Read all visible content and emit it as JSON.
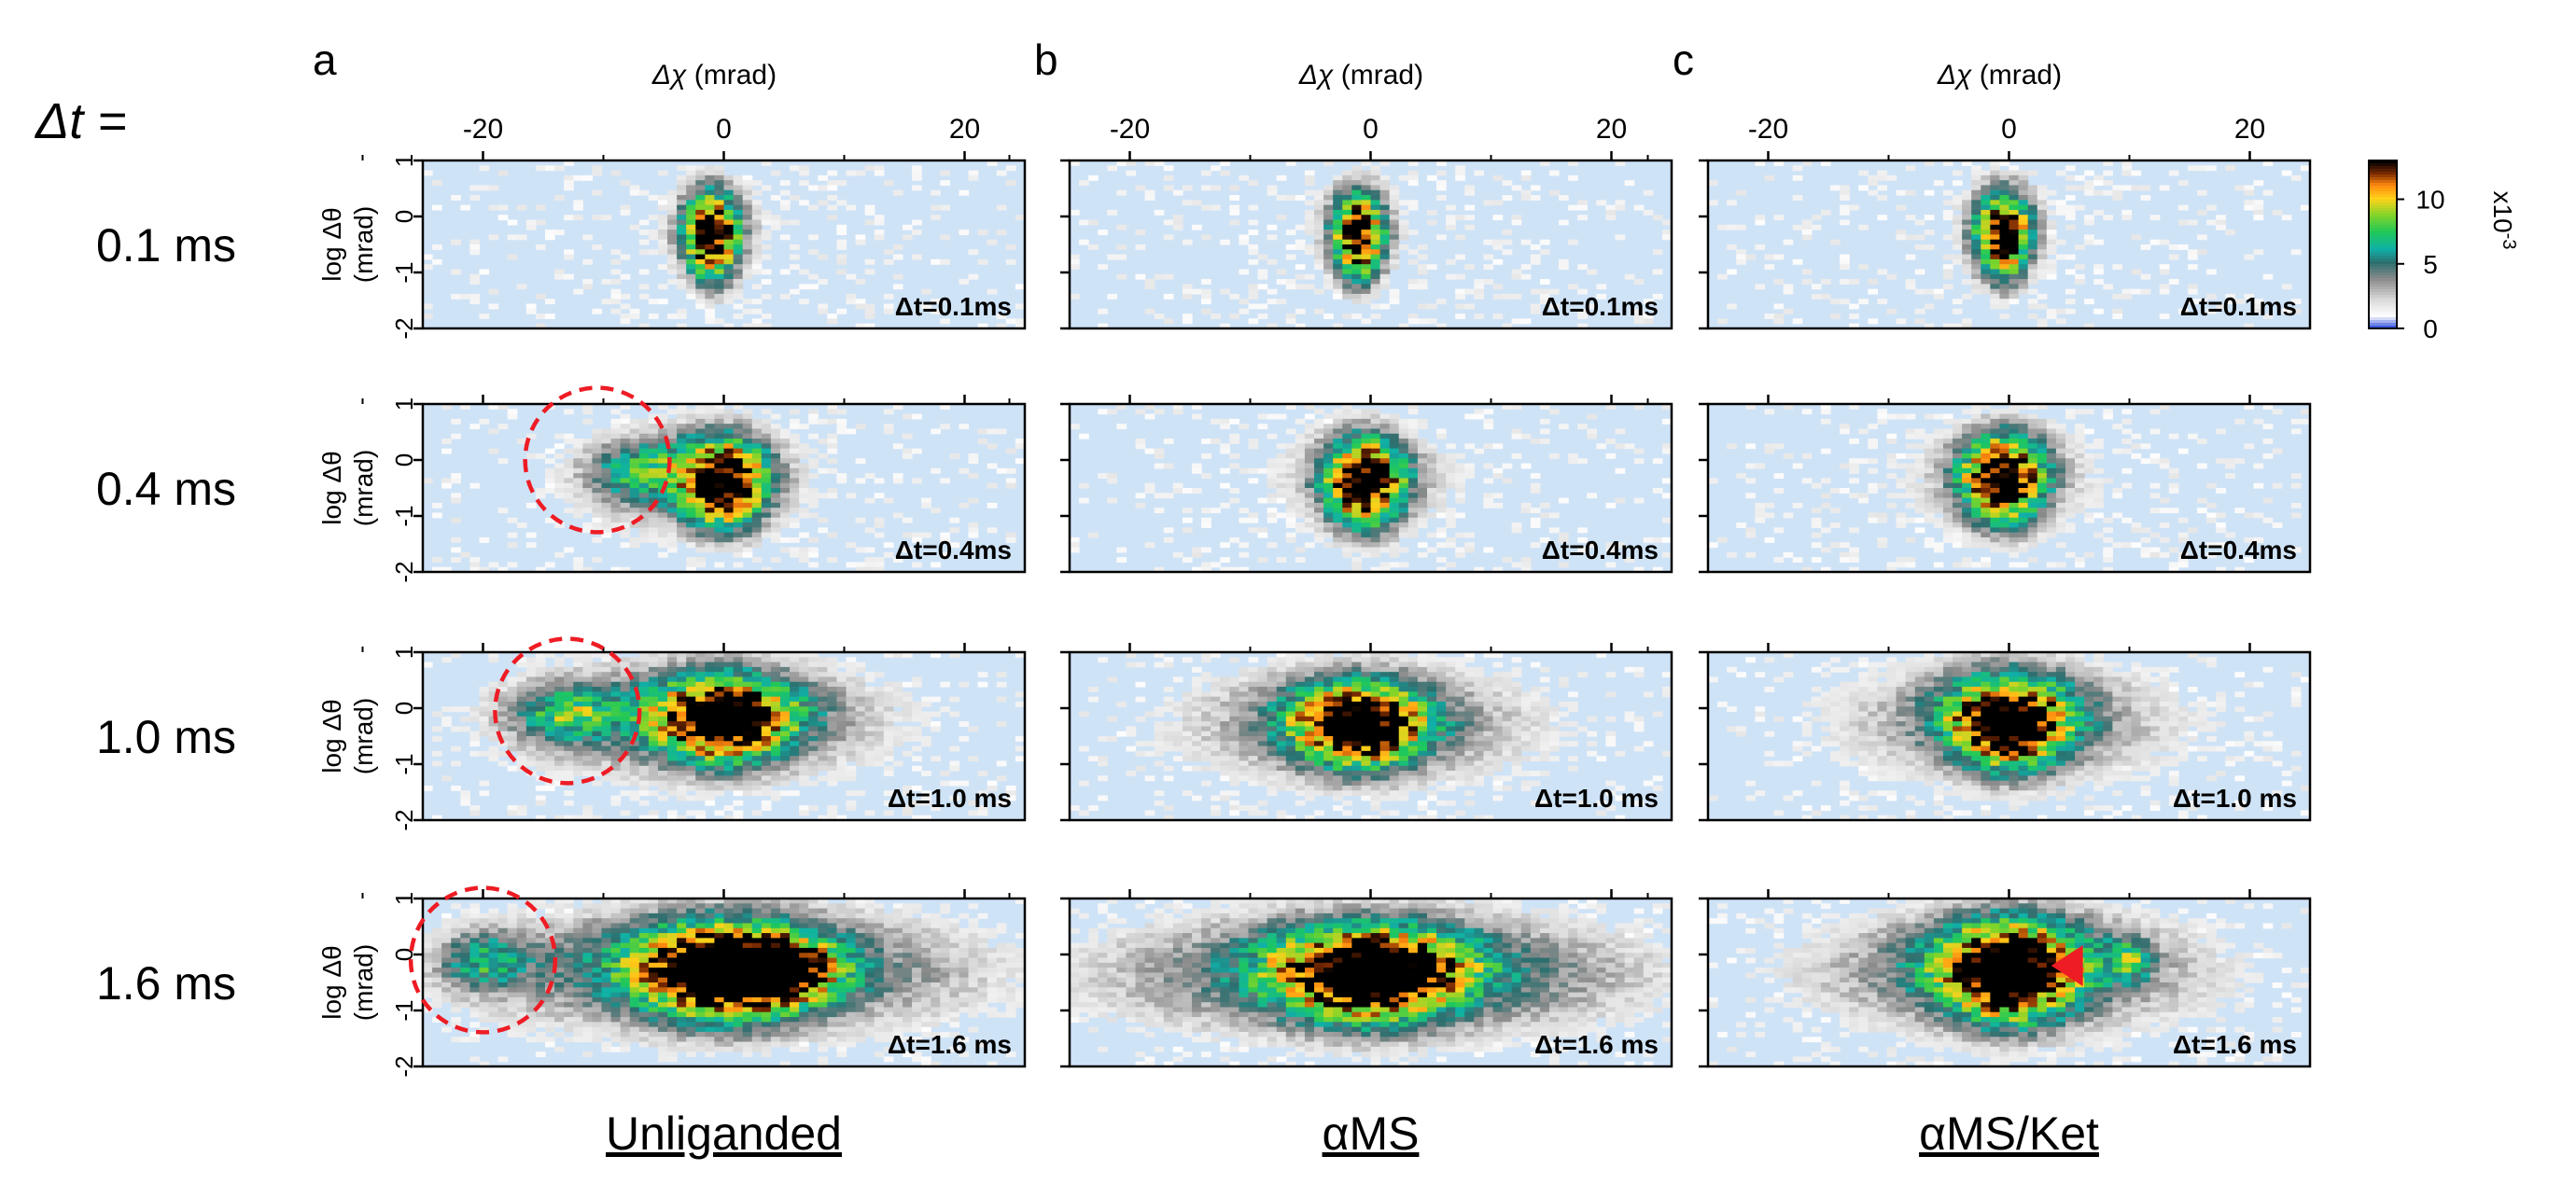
{
  "chart_data": {
    "type": "heatmap",
    "dt_header": "Δt =",
    "panel_letters": [
      "a",
      "b",
      "c"
    ],
    "column_titles": [
      "Unliganded",
      "αMS",
      "αMS/Ket"
    ],
    "row_labels": [
      "0.1 ms",
      "0.4 ms",
      "1.0 ms",
      "1.6 ms"
    ],
    "inset_labels": [
      "Δt=0.1ms",
      "Δt=0.4ms",
      "Δt=1.0 ms",
      "Δt=1.6 ms"
    ],
    "x_axis": {
      "label_symbol": "Δχ",
      "label_unit": "(mrad)",
      "range": [
        -25,
        25
      ],
      "ticks": [
        -20,
        0,
        20
      ],
      "tick_labels": [
        "-20",
        "0",
        "20"
      ]
    },
    "y_axis": {
      "label_line1": "log Δθ",
      "label_line2": "(mrad)",
      "range": [
        -2,
        1
      ],
      "ticks": [
        1,
        0,
        -1,
        -2
      ],
      "tick_labels": [
        "1",
        "0",
        "-1",
        "-2"
      ]
    },
    "colorbar": {
      "range": [
        0,
        0.013
      ],
      "ticks": [
        0,
        5,
        10
      ],
      "tick_labels": [
        "0",
        "5",
        "10"
      ],
      "multiplier": "x10-3",
      "multiplier_base": "x10",
      "multiplier_exp": "-3"
    },
    "annotations": {
      "dashed_circles": [
        {
          "column": 0,
          "row": 1,
          "center": [
            -10.5,
            0.0
          ],
          "radius_mrad": 6
        },
        {
          "column": 0,
          "row": 2,
          "center": [
            -13.0,
            -0.05
          ],
          "radius_mrad": 6
        },
        {
          "column": 0,
          "row": 3,
          "center": [
            -20.0,
            -0.1
          ],
          "radius_mrad": 6
        }
      ],
      "arrowhead": {
        "column": 2,
        "row": 3,
        "at": [
          3.5,
          -0.2
        ]
      }
    },
    "spot_params": {
      "Unliganded": [
        {
          "cx": -1,
          "sx": 1.6,
          "cy": -0.35,
          "sy": 0.55,
          "halo": 0.35,
          "shift": 0,
          "blobs": []
        },
        {
          "cx": 0,
          "sx": 2.6,
          "cy": -0.4,
          "sy": 0.55,
          "halo": 0.5,
          "shift": -3,
          "blobs": [
            {
              "x": -7,
              "y": -0.2,
              "amp": 0.35,
              "sx": 3,
              "sy": 0.4
            }
          ]
        },
        {
          "cx": 0,
          "sx": 4.0,
          "cy": -0.2,
          "sy": 0.5,
          "halo": 0.75,
          "shift": -2,
          "blobs": [
            {
              "x": -13,
              "y": -0.1,
              "amp": 0.4,
              "sx": 3,
              "sy": 0.35
            }
          ]
        },
        {
          "cx": 0,
          "sx": 5.0,
          "cy": -0.3,
          "sy": 0.55,
          "halo": 0.95,
          "shift": 0,
          "blobs": [
            {
              "x": -20,
              "y": -0.1,
              "amp": 0.35,
              "sx": 2.5,
              "sy": 0.35
            },
            {
              "x": 5,
              "y": -0.3,
              "amp": 0.45,
              "sx": 3,
              "sy": 0.4
            }
          ]
        }
      ],
      "αMS": [
        {
          "cx": -1,
          "sx": 1.5,
          "cy": -0.35,
          "sy": 0.55,
          "halo": 0.3,
          "shift": 0,
          "blobs": []
        },
        {
          "cx": -0.5,
          "sx": 2.3,
          "cy": -0.4,
          "sy": 0.55,
          "halo": 0.45,
          "shift": 0,
          "blobs": []
        },
        {
          "cx": -1,
          "sx": 3.8,
          "cy": -0.3,
          "sy": 0.5,
          "halo": 0.7,
          "shift": 0,
          "blobs": []
        },
        {
          "cx": 0,
          "sx": 5.5,
          "cy": -0.35,
          "sy": 0.55,
          "halo": 0.9,
          "shift": 0,
          "blobs": []
        }
      ],
      "αMS/Ket": [
        {
          "cx": -0.5,
          "sx": 1.6,
          "cy": -0.35,
          "sy": 0.55,
          "halo": 0.3,
          "shift": 0,
          "blobs": []
        },
        {
          "cx": -0.5,
          "sx": 2.4,
          "cy": -0.35,
          "sy": 0.55,
          "halo": 0.45,
          "shift": 0,
          "blobs": []
        },
        {
          "cx": 0,
          "sx": 3.5,
          "cy": -0.25,
          "sy": 0.55,
          "halo": 0.7,
          "shift": 0,
          "blobs": []
        },
        {
          "cx": 0,
          "sx": 4.0,
          "cy": -0.3,
          "sy": 0.6,
          "halo": 0.85,
          "shift": 0,
          "blobs": [
            {
              "x": 10,
              "y": -0.1,
              "amp": 0.35,
              "sx": 1.2,
              "sy": 0.25
            }
          ]
        }
      ]
    }
  },
  "colors": {
    "background_fill": "#cfe3f7",
    "annotation_red": "#ee1c24",
    "scale": [
      "#0a2fd6",
      "#ffffff",
      "#d9d9d9",
      "#8c8c8c",
      "#2d6e6e",
      "#10b0a8",
      "#1fc85a",
      "#7fd42a",
      "#ffd21a",
      "#ff8a10",
      "#7a2a00",
      "#000000"
    ]
  }
}
